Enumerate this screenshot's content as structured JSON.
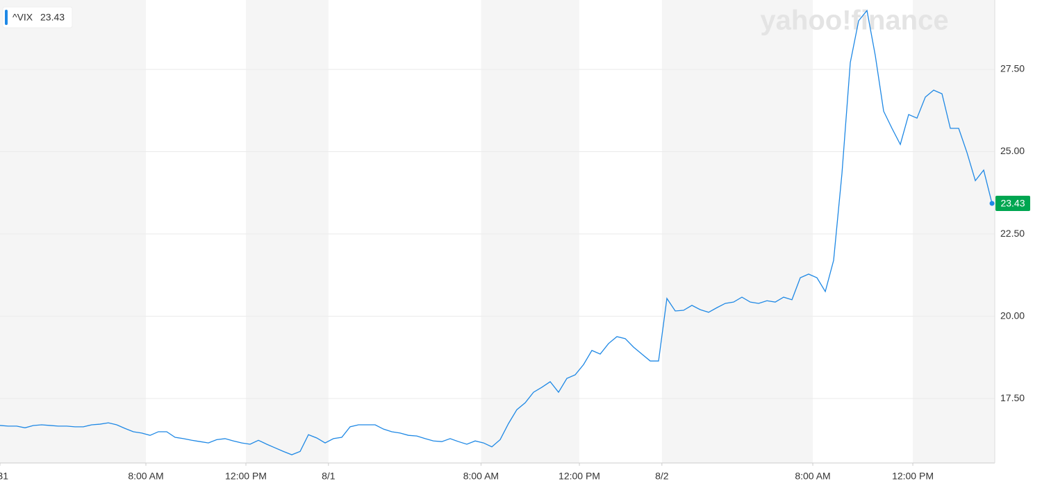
{
  "chart_data": {
    "type": "line",
    "watermark": "yahoo!finance",
    "series": [
      {
        "name": "^VIX",
        "color": "#1e88e5",
        "values": [
          16.68,
          16.66,
          16.66,
          16.61,
          16.68,
          16.7,
          16.68,
          16.66,
          16.66,
          16.64,
          16.64,
          16.7,
          16.72,
          16.76,
          16.7,
          16.59,
          16.49,
          16.45,
          16.38,
          16.49,
          16.49,
          16.32,
          16.28,
          16.23,
          16.19,
          16.15,
          16.25,
          16.28,
          16.21,
          16.15,
          16.11,
          16.23,
          16.11,
          16.0,
          15.89,
          15.79,
          15.89,
          16.4,
          16.3,
          16.15,
          16.28,
          16.32,
          16.64,
          16.7,
          16.7,
          16.7,
          16.57,
          16.49,
          16.45,
          16.38,
          16.36,
          16.28,
          16.21,
          16.19,
          16.28,
          16.19,
          16.11,
          16.21,
          16.15,
          16.03,
          16.25,
          16.74,
          17.16,
          17.37,
          17.69,
          17.84,
          18.01,
          17.69,
          18.11,
          18.22,
          18.53,
          18.96,
          18.85,
          19.17,
          19.38,
          19.32,
          19.06,
          18.85,
          18.64,
          18.64,
          20.54,
          20.16,
          20.18,
          20.33,
          20.2,
          20.12,
          20.26,
          20.39,
          20.43,
          20.58,
          20.43,
          20.39,
          20.47,
          20.43,
          20.58,
          20.5,
          21.17,
          21.28,
          21.17,
          20.75,
          21.7,
          24.34,
          27.71,
          28.98,
          29.29,
          27.92,
          26.23,
          25.71,
          25.22,
          26.13,
          26.02,
          26.66,
          26.87,
          26.76,
          25.71,
          25.71,
          24.97,
          24.12,
          24.44,
          23.43
        ]
      }
    ],
    "xlim": [
      0,
      119.33
    ],
    "xticks": [
      {
        "value": 0,
        "label": "31"
      },
      {
        "value": 17.5,
        "label": "8:00 AM"
      },
      {
        "value": 29.5,
        "label": "12:00 PM"
      },
      {
        "value": 39.4,
        "label": "8/1"
      },
      {
        "value": 57.7,
        "label": "8:00 AM"
      },
      {
        "value": 69.5,
        "label": "12:00 PM"
      },
      {
        "value": 79.4,
        "label": "8/2"
      },
      {
        "value": 97.5,
        "label": "8:00 AM"
      },
      {
        "value": 109.5,
        "label": "12:00 PM"
      }
    ],
    "ylim": [
      15.54,
      29.61
    ],
    "yticks": [
      {
        "value": 17.5,
        "label": "17.50"
      },
      {
        "value": 20,
        "label": "20.00"
      },
      {
        "value": 22.5,
        "label": "22.50"
      },
      {
        "value": 25,
        "label": "25.00"
      },
      {
        "value": 27.5,
        "label": "27.50"
      }
    ],
    "grid": true
  }
}
